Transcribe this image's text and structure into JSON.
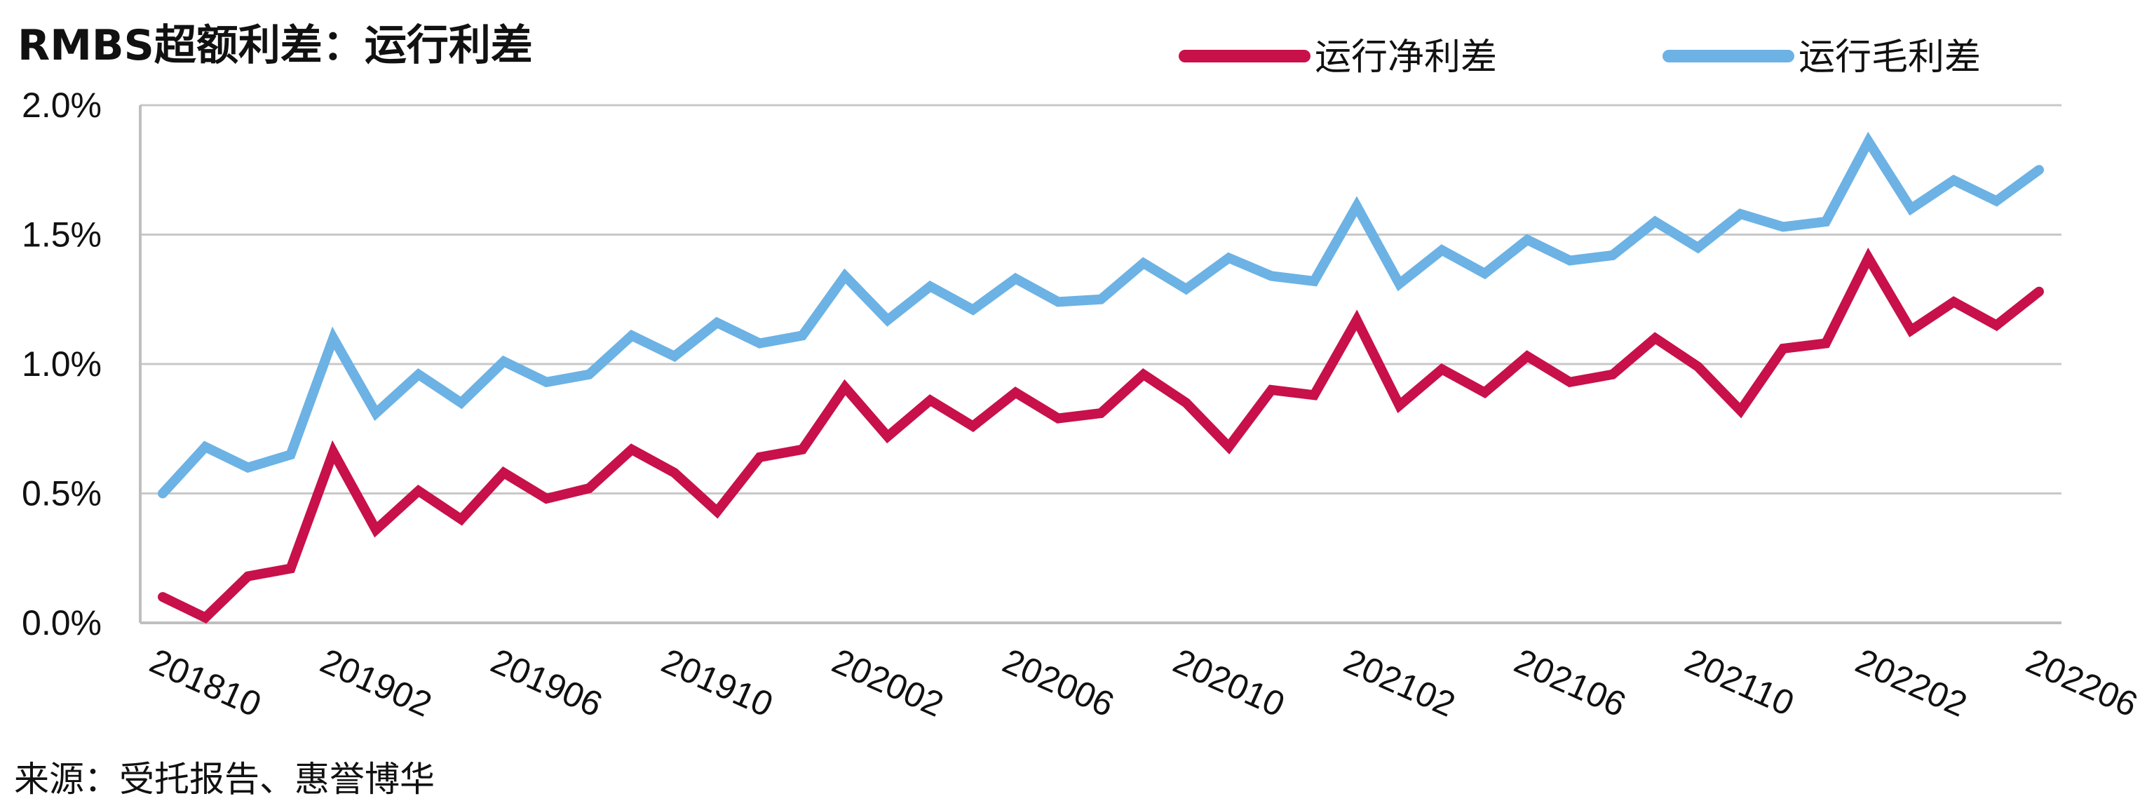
{
  "chart_data": {
    "type": "line",
    "title": "RMBS超额利差：运行利差",
    "source": "来源：受托报告、惠誉博华",
    "ylim": [
      0,
      0.02
    ],
    "y_ticks": [
      "0.0%",
      "0.5%",
      "1.0%",
      "1.5%",
      "2.0%"
    ],
    "y_tick_values": [
      0,
      0.005,
      0.01,
      0.015,
      0.02
    ],
    "x_tick_labels": [
      "201810",
      "201902",
      "201906",
      "201910",
      "202002",
      "202006",
      "202010",
      "202102",
      "202106",
      "202110",
      "202202",
      "202206"
    ],
    "grid": "horizontal",
    "legend_position": "top",
    "x": [
      "201810",
      "201811",
      "201812",
      "201901",
      "201902",
      "201903",
      "201904",
      "201905",
      "201906",
      "201907",
      "201908",
      "201909",
      "201910",
      "201911",
      "201912",
      "202001",
      "202002",
      "202003",
      "202004",
      "202005",
      "202006",
      "202007",
      "202008",
      "202009",
      "202010",
      "202011",
      "202012",
      "202101",
      "202102",
      "202103",
      "202104",
      "202105",
      "202106",
      "202107",
      "202108",
      "202109",
      "202110",
      "202111",
      "202112",
      "202201",
      "202202",
      "202203",
      "202204",
      "202205",
      "202206"
    ],
    "series": [
      {
        "name": "运行净利差",
        "color": "#c8104a",
        "values": [
          0.001,
          0.0002,
          0.0018,
          0.0021,
          0.0066,
          0.0036,
          0.0051,
          0.004,
          0.0058,
          0.0048,
          0.0052,
          0.0067,
          0.0058,
          0.0043,
          0.0064,
          0.0067,
          0.0091,
          0.0072,
          0.0086,
          0.0076,
          0.0089,
          0.0079,
          0.0081,
          0.0096,
          0.0085,
          0.0068,
          0.009,
          0.0088,
          0.0117,
          0.0084,
          0.0098,
          0.0089,
          0.0103,
          0.0093,
          0.0096,
          0.011,
          0.0099,
          0.0082,
          0.0106,
          0.0108,
          0.0141,
          0.0113,
          0.0124,
          0.0115,
          0.0128
        ]
      },
      {
        "name": "运行毛利差",
        "color": "#6cb2e4",
        "values": [
          0.005,
          0.0068,
          0.006,
          0.0065,
          0.011,
          0.0081,
          0.0096,
          0.0085,
          0.0101,
          0.0093,
          0.0096,
          0.0111,
          0.0103,
          0.0116,
          0.0108,
          0.0111,
          0.0134,
          0.0117,
          0.013,
          0.0121,
          0.0133,
          0.0124,
          0.0125,
          0.0139,
          0.0129,
          0.0141,
          0.0134,
          0.0132,
          0.0161,
          0.0131,
          0.0144,
          0.0135,
          0.0148,
          0.014,
          0.0142,
          0.0155,
          0.0145,
          0.0158,
          0.0153,
          0.0155,
          0.0186,
          0.016,
          0.0171,
          0.0163,
          0.0175
        ]
      }
    ]
  }
}
